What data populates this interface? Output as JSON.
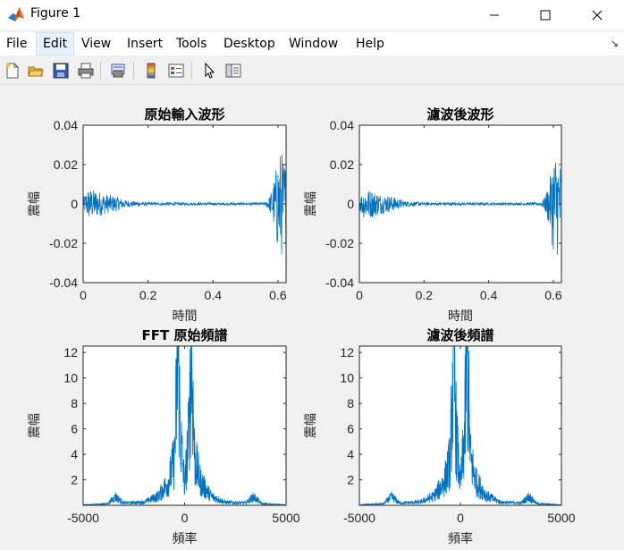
{
  "window": {
    "title": "Figure 1",
    "minimize_icon": "minimize-icon",
    "maximize_icon": "maximize-icon",
    "close_icon": "close-icon"
  },
  "menu": {
    "items": [
      "File",
      "Edit",
      "View",
      "Insert",
      "Tools",
      "Desktop",
      "Window",
      "Help"
    ],
    "active": "Edit"
  },
  "toolbar": {
    "icons": [
      "new-figure-icon",
      "open-file-icon",
      "save-icon",
      "print-icon",
      "print-preview-icon",
      "colorbar-icon",
      "legend-icon",
      "pointer-icon",
      "property-editor-icon"
    ]
  },
  "colors": {
    "line": "#0072bd",
    "axes_bg": "#ffffff",
    "figure_bg": "#f0f0f0"
  },
  "chart_data": [
    {
      "type": "line",
      "title": "原始輸入波形",
      "xlabel": "時間",
      "ylabel": "震幅",
      "xlim": [
        0,
        0.625
      ],
      "ylim": [
        -0.04,
        0.04
      ],
      "xticks": [
        0,
        0.2,
        0.4,
        0.6
      ],
      "xtick_labels": [
        "0",
        "0.2",
        "0.4",
        "0.6"
      ],
      "yticks": [
        -0.04,
        -0.02,
        0,
        0.02,
        0.04
      ],
      "ytick_labels": [
        "-0.04",
        "-0.02",
        "0",
        "0.02",
        "0.04"
      ],
      "envelope": [
        {
          "x": 0.0,
          "amp": 0.003
        },
        {
          "x": 0.015,
          "amp": 0.008
        },
        {
          "x": 0.04,
          "amp": 0.007
        },
        {
          "x": 0.07,
          "amp": 0.005
        },
        {
          "x": 0.1,
          "amp": 0.004
        },
        {
          "x": 0.14,
          "amp": 0.0015
        },
        {
          "x": 0.2,
          "amp": 0.0008
        },
        {
          "x": 0.5,
          "amp": 0.0006
        },
        {
          "x": 0.56,
          "amp": 0.0008
        },
        {
          "x": 0.575,
          "amp": 0.004
        },
        {
          "x": 0.59,
          "amp": 0.014
        },
        {
          "x": 0.6,
          "amp": 0.025
        },
        {
          "x": 0.61,
          "amp": 0.028
        },
        {
          "x": 0.625,
          "amp": 0.02
        }
      ]
    },
    {
      "type": "line",
      "title": "濾波後波形",
      "xlabel": "時間",
      "ylabel": "震幅",
      "xlim": [
        0,
        0.625
      ],
      "ylim": [
        -0.04,
        0.04
      ],
      "xticks": [
        0,
        0.2,
        0.4,
        0.6
      ],
      "xtick_labels": [
        "0",
        "0.2",
        "0.4",
        "0.6"
      ],
      "yticks": [
        -0.04,
        -0.02,
        0,
        0.02,
        0.04
      ],
      "ytick_labels": [
        "-0.04",
        "-0.02",
        "0",
        "0.02",
        "0.04"
      ],
      "envelope": [
        {
          "x": 0.0,
          "amp": 0.003
        },
        {
          "x": 0.015,
          "amp": 0.008
        },
        {
          "x": 0.04,
          "amp": 0.007
        },
        {
          "x": 0.07,
          "amp": 0.005
        },
        {
          "x": 0.1,
          "amp": 0.004
        },
        {
          "x": 0.14,
          "amp": 0.0015
        },
        {
          "x": 0.2,
          "amp": 0.0008
        },
        {
          "x": 0.5,
          "amp": 0.0006
        },
        {
          "x": 0.56,
          "amp": 0.0008
        },
        {
          "x": 0.575,
          "amp": 0.004
        },
        {
          "x": 0.59,
          "amp": 0.014
        },
        {
          "x": 0.6,
          "amp": 0.025
        },
        {
          "x": 0.61,
          "amp": 0.028
        },
        {
          "x": 0.625,
          "amp": 0.02
        }
      ]
    },
    {
      "type": "line",
      "title": "FFT 原始頻譜",
      "xlabel": "頻率",
      "ylabel": "震幅",
      "xlim": [
        -5000,
        5000
      ],
      "ylim": [
        0,
        12.5
      ],
      "xticks": [
        -5000,
        0,
        5000
      ],
      "xtick_labels": [
        "-5000",
        "0",
        "5000"
      ],
      "yticks": [
        2,
        4,
        6,
        8,
        10,
        12
      ],
      "ytick_labels": [
        "2",
        "4",
        "6",
        "8",
        "10",
        "12"
      ],
      "profile": [
        {
          "f": 0,
          "level": 2.5
        },
        {
          "f": 200,
          "level": 9
        },
        {
          "f": 330,
          "level": 20
        },
        {
          "f": 500,
          "level": 6
        },
        {
          "f": 800,
          "level": 3
        },
        {
          "f": 1300,
          "level": 1.2
        },
        {
          "f": 2000,
          "level": 0.4
        },
        {
          "f": 3000,
          "level": 0.3
        },
        {
          "f": 3400,
          "level": 1.1
        },
        {
          "f": 3800,
          "level": 0.2
        },
        {
          "f": 5000,
          "level": 0.05
        }
      ]
    },
    {
      "type": "line",
      "title": "濾波後頻譜",
      "xlabel": "頻率",
      "ylabel": "震幅",
      "xlim": [
        -5000,
        5000
      ],
      "ylim": [
        0,
        12.5
      ],
      "xticks": [
        -5000,
        0,
        5000
      ],
      "xtick_labels": [
        "-5000",
        "0",
        "5000"
      ],
      "yticks": [
        2,
        4,
        6,
        8,
        10,
        12
      ],
      "ytick_labels": [
        "2",
        "4",
        "6",
        "8",
        "10",
        "12"
      ],
      "profile": [
        {
          "f": 0,
          "level": 2.5
        },
        {
          "f": 200,
          "level": 9
        },
        {
          "f": 330,
          "level": 20
        },
        {
          "f": 500,
          "level": 6
        },
        {
          "f": 800,
          "level": 3
        },
        {
          "f": 1300,
          "level": 1.2
        },
        {
          "f": 2000,
          "level": 0.4
        },
        {
          "f": 3000,
          "level": 0.3
        },
        {
          "f": 3400,
          "level": 1.1
        },
        {
          "f": 3800,
          "level": 0.2
        },
        {
          "f": 5000,
          "level": 0.05
        }
      ]
    }
  ]
}
